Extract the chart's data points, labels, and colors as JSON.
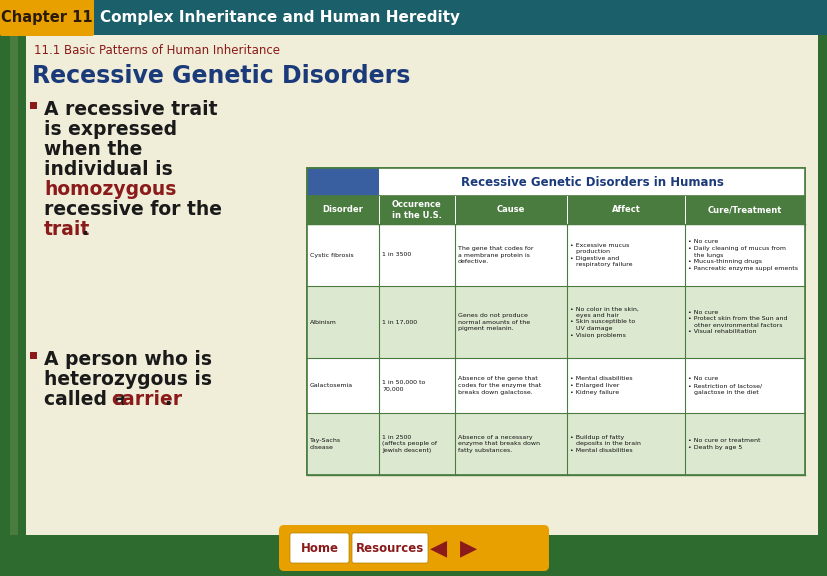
{
  "bg_outer": "#2e6b2e",
  "bg_inner": "#f0eed8",
  "header_bg": "#1a5f6a",
  "header_label": "Chapter 11",
  "header_title": "Complex Inheritance and Human Heredity",
  "chap_box_color": "#e8a000",
  "subheader_text": "11.1 Basic Patterns of Human Inheritance",
  "subheader_color": "#8b1a1a",
  "section_title": "Recessive Genetic Disorders",
  "section_title_color": "#1a3a7a",
  "red_color": "#8b1a1a",
  "black_color": "#1a1a1a",
  "table_title": "Recessive Genetic Disorders in Humans",
  "table_title_color": "#1a3a7a",
  "table_header_bg": "#4a7c3f",
  "table_row_bg1": "#ffffff",
  "table_row_bg2": "#dde8d0",
  "table_border_color": "#4a7c3f",
  "table_top_left_bg": "#3a5fa0",
  "col_headers": [
    "Disorder",
    "Occurence\nin the U.S.",
    "Cause",
    "Affect",
    "Cure/Treatment"
  ],
  "rows": [
    [
      "Cystic fibrosis",
      "1 in 3500",
      "The gene that codes for\na membrane protein is\ndefective.",
      "• Excessive mucus\n   production\n• Digestive and\n   respiratory failure",
      "• No cure\n• Daily cleaning of mucus from\n   the lungs\n• Mucus-thinning drugs\n• Pancreatic enzyme suppl ements"
    ],
    [
      "Albinism",
      "1 in 17,000",
      "Genes do not produce\nnormal amounts of the\npigment melanin.",
      "• No color in the skin,\n   eyes and hair\n• Skin susceptible to\n   UV damage\n• Vision problems",
      "• No cure\n• Protect skin from the Sun and\n   other environmental factors\n• Visual rehabilitation"
    ],
    [
      "Galactosemia",
      "1 in 50,000 to\n70,000",
      "Absence of the gene that\ncodes for the enzyme that\nbreaks down galactose.",
      "• Mental disabilities\n• Enlarged liver\n• Kidney failure",
      "• No cure\n• Restriction of lactose/\n   galactose in the diet"
    ],
    [
      "Tay-Sachs\ndisease",
      "1 in 2500\n(affects people of\nJewish descent)",
      "Absence of a necessary\nenzyme that breaks down\nfatty substances.",
      "• Buildup of fatty\n   deposits in the brain\n• Mental disabilities",
      "• No cure or treatment\n• Death by age 5"
    ]
  ],
  "nav_bg": "#e8a000",
  "nav_text_color": "#8b1a1a",
  "home_label": "Home",
  "resources_label": "Resources",
  "left_bar_color": "#4a7c3f",
  "left_bar2_color": "#2e6b2e"
}
